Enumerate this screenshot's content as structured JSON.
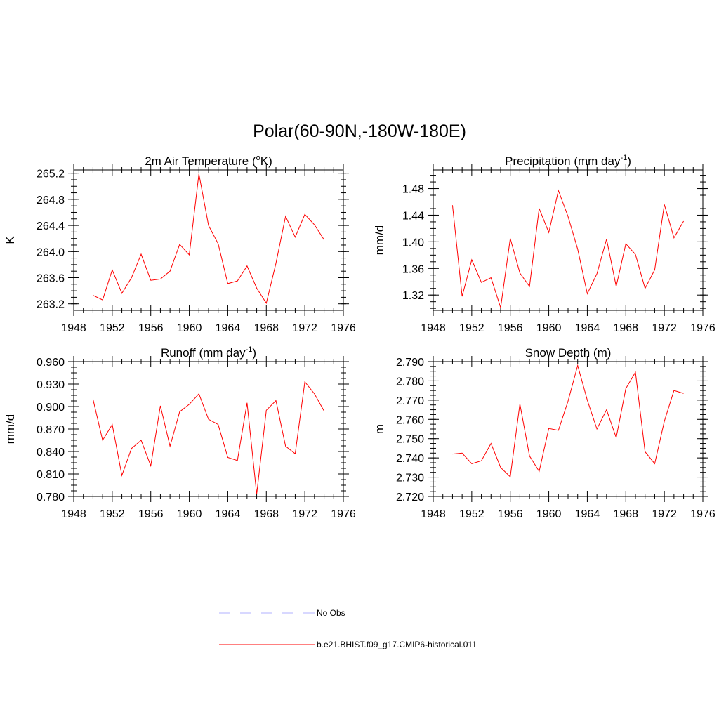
{
  "figure": {
    "title": "Polar(60-90N,-180W-180E)"
  },
  "colors": {
    "model": "#ff0000",
    "obs": "#b0b0ff"
  },
  "legend": {
    "placement": "bottom-center",
    "entries": [
      {
        "label": "No Obs",
        "style": "dashed",
        "color": "#b0b0ff"
      },
      {
        "label": "b.e21.BHIST.f09_g17.CMIP6-historical.011",
        "style": "solid",
        "color": "#ff0000"
      }
    ]
  },
  "chart_data": [
    {
      "type": "line",
      "title": "2m Air Temperature (",
      "title_sup_prefix": "o",
      "title_suffix": "K)",
      "ylabel": "K",
      "xlim": [
        1948,
        1976
      ],
      "xticks": [
        1948,
        1952,
        1956,
        1960,
        1964,
        1968,
        1972,
        1976
      ],
      "ylim": [
        263.1,
        265.25
      ],
      "yticks": [
        "263.2",
        "263.6",
        "264.0",
        "264.4",
        "264.8",
        "265.2"
      ],
      "grid": false,
      "series": [
        {
          "name": "b.e21.BHIST.f09_g17.CMIP6-historical.011",
          "x": [
            1950,
            1951,
            1952,
            1953,
            1954,
            1955,
            1956,
            1957,
            1958,
            1959,
            1960,
            1961,
            1962,
            1963,
            1964,
            1965,
            1966,
            1967,
            1968,
            1969,
            1970,
            1971,
            1972,
            1973,
            1974
          ],
          "y": [
            263.33,
            263.26,
            263.72,
            263.36,
            263.6,
            263.96,
            263.56,
            263.58,
            263.7,
            264.11,
            263.95,
            265.19,
            264.4,
            264.12,
            263.51,
            263.55,
            263.78,
            263.44,
            263.21,
            263.82,
            264.54,
            264.22,
            264.57,
            264.41,
            264.18
          ]
        }
      ]
    },
    {
      "type": "line",
      "title": "Precipitation (mm day",
      "title_sup": "-1",
      "title_suffix": ")",
      "ylabel": "mm/d",
      "xlim": [
        1948,
        1976
      ],
      "xticks": [
        1948,
        1952,
        1956,
        1960,
        1964,
        1968,
        1972,
        1976
      ],
      "ylim": [
        1.297,
        1.508
      ],
      "yticks": [
        "1.32",
        "1.36",
        "1.40",
        "1.44",
        "1.48"
      ],
      "grid": false,
      "series": [
        {
          "name": "b.e21.BHIST.f09_g17.CMIP6-historical.011",
          "x": [
            1950,
            1951,
            1952,
            1953,
            1954,
            1955,
            1956,
            1957,
            1958,
            1959,
            1960,
            1961,
            1962,
            1963,
            1964,
            1965,
            1966,
            1967,
            1968,
            1969,
            1970,
            1971,
            1972,
            1973,
            1974
          ],
          "y": [
            1.455,
            1.318,
            1.373,
            1.339,
            1.346,
            1.301,
            1.405,
            1.353,
            1.333,
            1.45,
            1.414,
            1.477,
            1.438,
            1.389,
            1.322,
            1.352,
            1.404,
            1.333,
            1.397,
            1.381,
            1.33,
            1.358,
            1.456,
            1.406,
            1.431
          ]
        }
      ]
    },
    {
      "type": "line",
      "title": "Runoff (mm day",
      "title_sup": "-1",
      "title_suffix": ")",
      "ylabel": "mm/d",
      "xlim": [
        1948,
        1976
      ],
      "xticks": [
        1948,
        1952,
        1956,
        1960,
        1964,
        1968,
        1972,
        1976
      ],
      "ylim": [
        0.78,
        0.96
      ],
      "yticks": [
        "0.780",
        "0.810",
        "0.840",
        "0.870",
        "0.900",
        "0.930",
        "0.960"
      ],
      "grid": false,
      "series": [
        {
          "name": "b.e21.BHIST.f09_g17.CMIP6-historical.011",
          "x": [
            1950,
            1951,
            1952,
            1953,
            1954,
            1955,
            1956,
            1957,
            1958,
            1959,
            1960,
            1961,
            1962,
            1963,
            1964,
            1965,
            1966,
            1967,
            1968,
            1969,
            1970,
            1971,
            1972,
            1973,
            1974
          ],
          "y": [
            0.91,
            0.855,
            0.876,
            0.808,
            0.844,
            0.855,
            0.821,
            0.901,
            0.847,
            0.893,
            0.903,
            0.917,
            0.883,
            0.876,
            0.832,
            0.828,
            0.905,
            0.783,
            0.895,
            0.908,
            0.847,
            0.837,
            0.933,
            0.917,
            0.894
          ]
        }
      ]
    },
    {
      "type": "line",
      "title": "Snow Depth (m)",
      "ylabel": "m",
      "xlim": [
        1948,
        1976
      ],
      "xticks": [
        1948,
        1952,
        1956,
        1960,
        1964,
        1968,
        1972,
        1976
      ],
      "ylim": [
        2.72,
        2.79
      ],
      "yticks": [
        "2.720",
        "2.730",
        "2.740",
        "2.750",
        "2.760",
        "2.770",
        "2.780",
        "2.790"
      ],
      "grid": false,
      "series": [
        {
          "name": "b.e21.BHIST.f09_g17.CMIP6-historical.011",
          "x": [
            1950,
            1951,
            1952,
            1953,
            1954,
            1955,
            1956,
            1957,
            1958,
            1959,
            1960,
            1961,
            1962,
            1963,
            1964,
            1965,
            1966,
            1967,
            1968,
            1969,
            1970,
            1971,
            1972,
            1973,
            1974
          ],
          "y": [
            2.742,
            2.7425,
            2.737,
            2.7385,
            2.7475,
            2.735,
            2.7302,
            2.768,
            2.741,
            2.733,
            2.7553,
            2.7543,
            2.7695,
            2.788,
            2.77,
            2.755,
            2.765,
            2.7505,
            2.776,
            2.7845,
            2.7432,
            2.737,
            2.759,
            2.775,
            2.7735
          ]
        }
      ]
    }
  ]
}
